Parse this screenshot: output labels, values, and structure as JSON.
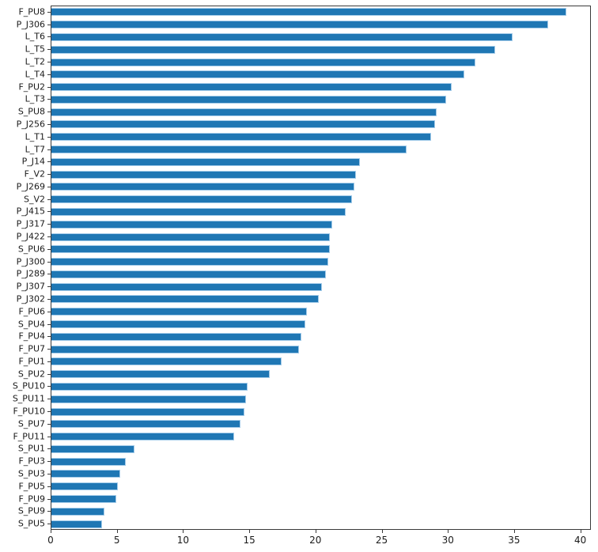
{
  "chart_data": {
    "type": "bar",
    "orientation": "horizontal",
    "title": "",
    "xlabel": "",
    "ylabel": "",
    "grid": false,
    "legend": null,
    "bar_color": "#1f77b4",
    "bar_edge_color": "#a3cbe9",
    "axis_color": "#3a3a3a",
    "xlim": [
      0,
      40.8
    ],
    "xticks": [
      "0",
      "5",
      "10",
      "15",
      "20",
      "25",
      "30",
      "35",
      "40"
    ],
    "xtick_values": [
      0,
      5,
      10,
      15,
      20,
      25,
      30,
      35,
      40
    ],
    "categories": [
      "F_PU8",
      "P_J306",
      "L_T6",
      "L_T5",
      "L_T2",
      "L_T4",
      "F_PU2",
      "L_T3",
      "S_PU8",
      "P_J256",
      "L_T1",
      "L_T7",
      "P_J14",
      "F_V2",
      "P_J269",
      "S_V2",
      "P_J415",
      "P_J317",
      "P_J422",
      "S_PU6",
      "P_J300",
      "P_J289",
      "P_J307",
      "P_J302",
      "F_PU6",
      "S_PU4",
      "F_PU4",
      "F_PU7",
      "F_PU1",
      "S_PU2",
      "S_PU10",
      "S_PU11",
      "F_PU10",
      "S_PU7",
      "F_PU11",
      "S_PU1",
      "F_PU3",
      "S_PU3",
      "F_PU5",
      "F_PU9",
      "S_PU9",
      "S_PU5"
    ],
    "values": [
      38.9,
      37.5,
      34.8,
      33.5,
      32.0,
      31.2,
      30.2,
      29.8,
      29.1,
      29.0,
      28.7,
      26.8,
      23.3,
      23.0,
      22.9,
      22.7,
      22.2,
      21.2,
      21.0,
      21.0,
      20.9,
      20.7,
      20.4,
      20.2,
      19.3,
      19.2,
      18.9,
      18.7,
      17.4,
      16.5,
      14.8,
      14.7,
      14.6,
      14.3,
      13.8,
      6.3,
      5.6,
      5.2,
      5.0,
      4.9,
      4.0,
      3.8
    ]
  }
}
